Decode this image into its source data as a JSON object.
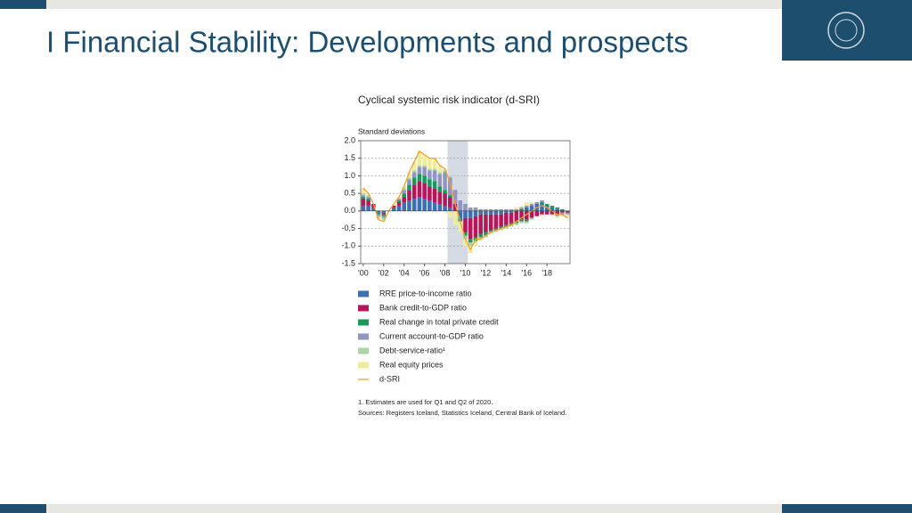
{
  "slide_title": "I Financial Stability: Developments and prospects",
  "chart_data": {
    "type": "stacked-bar",
    "title": "Cyclical systemic risk indicator (d-SRI)",
    "y_label": "Standard deviations",
    "categories": [
      "'00",
      null,
      null,
      null,
      "'02",
      null,
      null,
      null,
      "'04",
      null,
      null,
      null,
      "'06",
      null,
      null,
      null,
      "'08",
      null,
      null,
      null,
      "'10",
      null,
      null,
      null,
      "'12",
      null,
      null,
      null,
      "'14",
      null,
      null,
      null,
      "'16",
      null,
      null,
      null,
      "'18",
      null,
      null,
      null,
      null
    ],
    "ylim": [
      -1.5,
      2.0
    ],
    "yticks": [
      {
        "value": 2.0,
        "label": "2.0"
      },
      1.5,
      {
        "value": 1.0,
        "label": "1.0"
      },
      0.5,
      {
        "value": 0.0,
        "label": "0.0"
      },
      {
        "value": -0.5,
        "label": "-0,5"
      },
      {
        "value": -1.0,
        "label": "-1.0"
      },
      -1.5
    ],
    "grid": true,
    "shaded": {
      "from": 17,
      "to": 20
    },
    "series": [
      {
        "name": "RRE price-to-income ratio",
        "color": "#3d70b2",
        "values": [
          0.15,
          0.15,
          0.1,
          -0.05,
          -0.05,
          0,
          0.1,
          0.15,
          0.25,
          0.3,
          0.35,
          0.4,
          0.35,
          0.3,
          0.25,
          0.2,
          0.15,
          0.1,
          0,
          -0.2,
          -0.2,
          -0.2,
          -0.15,
          -0.1,
          -0.1,
          -0.1,
          -0.1,
          -0.1,
          -0.05,
          -0.05,
          0,
          0.05,
          0.1,
          0.15,
          0.2,
          0.2,
          0.15,
          0.1,
          0.05,
          0,
          0
        ]
      },
      {
        "name": "Bank credit-to-GDP ratio",
        "color": "#b5175a",
        "values": [
          0.2,
          0.15,
          0.1,
          0,
          -0.05,
          0,
          0.05,
          0.1,
          0.15,
          0.3,
          0.4,
          0.45,
          0.45,
          0.4,
          0.4,
          0.35,
          0.35,
          0.3,
          0.2,
          0,
          -0.4,
          -0.6,
          -0.6,
          -0.55,
          -0.5,
          -0.45,
          -0.4,
          -0.35,
          -0.35,
          -0.3,
          -0.3,
          -0.25,
          -0.25,
          -0.2,
          -0.15,
          -0.1,
          -0.1,
          -0.1,
          -0.1,
          -0.05,
          -0.05
        ]
      },
      {
        "name": "Real change in total private credit",
        "color": "#1a9a5a",
        "values": [
          0.05,
          0.05,
          0,
          -0.05,
          -0.05,
          0,
          0,
          0.05,
          0.1,
          0.15,
          0.2,
          0.2,
          0.2,
          0.2,
          0.2,
          0.15,
          0.1,
          0.05,
          0,
          -0.1,
          -0.1,
          -0.1,
          -0.1,
          -0.1,
          -0.1,
          -0.05,
          -0.05,
          -0.05,
          -0.05,
          -0.05,
          -0.05,
          -0.05,
          -0.05,
          0,
          0,
          0.05,
          0.05,
          0.05,
          0.05,
          0.05,
          0
        ]
      },
      {
        "name": "Current account-to-GDP ratio",
        "color": "#9095c2",
        "values": [
          0.05,
          0.05,
          0,
          -0.05,
          -0.05,
          0,
          0,
          0.05,
          0.1,
          0.15,
          0.15,
          0.2,
          0.25,
          0.25,
          0.3,
          0.35,
          0.5,
          0.5,
          0.4,
          0.3,
          0.2,
          0.1,
          0.1,
          0.05,
          0.05,
          0.05,
          0.05,
          0.05,
          0.05,
          0.05,
          0.05,
          0.05,
          0.05,
          0.05,
          0.05,
          0.05,
          0,
          0,
          -0.05,
          -0.05,
          -0.05
        ]
      },
      {
        "name": "Debt-service-ratio¹",
        "color": "#a9d6a2",
        "values": [
          0.05,
          0.05,
          0,
          -0.05,
          -0.05,
          0,
          0,
          0,
          0.05,
          0.05,
          0.05,
          0.05,
          0.05,
          0.05,
          0.05,
          0.05,
          0.05,
          0.05,
          0,
          0,
          -0.1,
          -0.1,
          -0.05,
          -0.05,
          -0.05,
          -0.05,
          -0.05,
          -0.05,
          -0.05,
          -0.05,
          -0.05,
          -0.05,
          -0.05,
          -0.05,
          0,
          0,
          0,
          0,
          0,
          0,
          0
        ]
      },
      {
        "name": "Real equity prices",
        "color": "#f1ec9c",
        "values": [
          0.15,
          0.05,
          0,
          -0.05,
          -0.05,
          0,
          0.05,
          0.05,
          0.05,
          0.15,
          0.25,
          0.4,
          0.3,
          0.3,
          0.3,
          0.2,
          0.05,
          -0.2,
          -0.4,
          -0.3,
          -0.2,
          -0.2,
          -0.1,
          -0.05,
          0,
          0,
          0,
          0,
          0,
          0,
          0.05,
          0.05,
          0.1,
          0.05,
          0,
          -0.05,
          0,
          -0.05,
          -0.05,
          -0.05,
          -0.1
        ]
      },
      {
        "name": "d-SRI",
        "color": "#f0a030",
        "kind": "line",
        "values": [
          0.65,
          0.5,
          0.2,
          -0.25,
          -0.3,
          0,
          0.2,
          0.4,
          0.7,
          1.1,
          1.4,
          1.7,
          1.6,
          1.5,
          1.5,
          1.3,
          1.2,
          0.8,
          0.2,
          -0.3,
          -0.8,
          -1.1,
          -0.8,
          -0.8,
          -0.7,
          -0.6,
          -0.55,
          -0.5,
          -0.45,
          -0.4,
          -0.3,
          -0.2,
          -0.1,
          0,
          0.1,
          0.15,
          0.1,
          0,
          -0.1,
          -0.1,
          -0.2
        ]
      }
    ],
    "footnotes": [
      "1. Estimates are used for Q1 and Q2 of 2020.",
      "Sources: Registers Iceland, Statistics Iceland, Central Bank of Iceland."
    ]
  }
}
